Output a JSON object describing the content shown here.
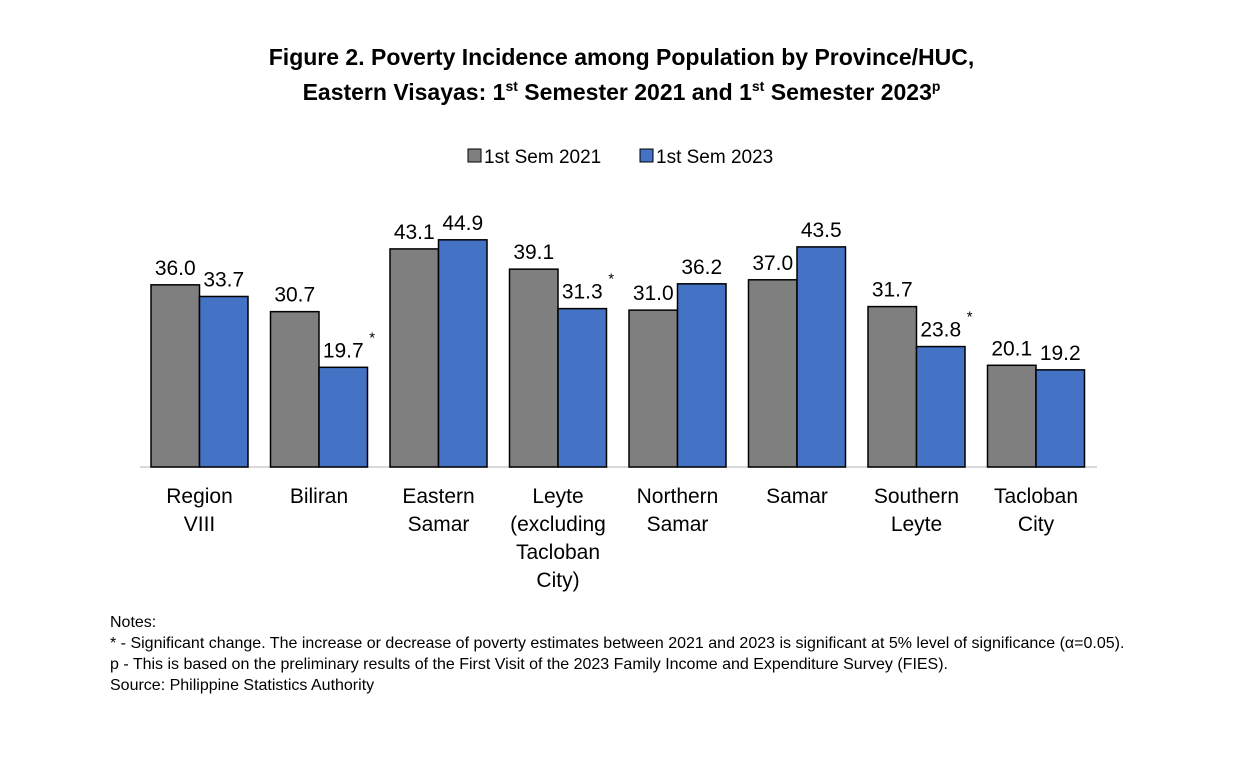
{
  "title": {
    "line1": "Figure 2. Poverty Incidence among Population by Province/HUC,",
    "line2_a": "Eastern Visayas: 1",
    "line2_sup1": "st",
    "line2_b": " Semester 2021 and 1",
    "line2_sup2": "st",
    "line2_c": " Semester 2023",
    "line2_sup3": "p"
  },
  "chart_data": {
    "type": "bar",
    "categories": [
      [
        "Region",
        "VIII"
      ],
      [
        "Biliran"
      ],
      [
        "Eastern",
        "Samar"
      ],
      [
        "Leyte",
        "(excluding",
        "Tacloban",
        "City)"
      ],
      [
        "Northern",
        "Samar"
      ],
      [
        "Samar"
      ],
      [
        "Southern",
        "Leyte"
      ],
      [
        "Tacloban",
        "City"
      ]
    ],
    "series": [
      {
        "name": "1st Sem 2021",
        "color": "#7f7f7f",
        "values": [
          36.0,
          30.7,
          43.1,
          39.1,
          31.0,
          37.0,
          31.7,
          20.1
        ],
        "significant": [
          false,
          false,
          false,
          false,
          false,
          false,
          false,
          false
        ]
      },
      {
        "name": "1st Sem 2023",
        "color": "#4472c4",
        "values": [
          33.7,
          19.7,
          44.9,
          31.3,
          36.2,
          43.5,
          23.8,
          19.2
        ],
        "significant": [
          false,
          true,
          false,
          true,
          false,
          false,
          true,
          false
        ]
      }
    ],
    "significance_marker": "*",
    "ylim": [
      0,
      50
    ],
    "grid": false,
    "legend": "top-center",
    "axis_color": "#d9d9d9"
  },
  "notes": [
    "Notes:",
    "* - Significant change. The increase or decrease of poverty estimates between 2021 and 2023 is significant at 5% level of significance (α=0.05).",
    "p - This is based on the preliminary results of the First Visit of the 2023 Family Income and Expenditure Survey (FIES).",
    "Source: Philippine Statistics Authority"
  ]
}
